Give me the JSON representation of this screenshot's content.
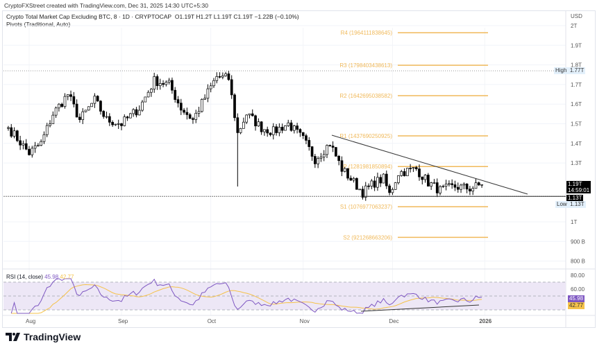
{
  "header": {
    "credit": "CryptoFXStreet created with TradingView.com, Dec 31, 2025 14:30 UTC+5:30",
    "symbol": "Crypto Total Market Cap Excluding BTC, 8 · 1D · CRYPTOCAP",
    "ohlc": "O1.19T  H1.2T  L1.19T  C1.19T  −1.22B (−0.10%)",
    "indicator": "Pivots (Traditional, Auto)"
  },
  "footer": {
    "brand": "TradingView"
  },
  "colors": {
    "up": "#ffffff",
    "down": "#000000",
    "pivot": "#f0b95a",
    "rsi": "#7e57c2",
    "rsi_ma": "#f5c24a",
    "rsi_band": "#ede7f6"
  },
  "chart_data": {
    "type": "candlestick",
    "currency": "USD",
    "y_ticks": [
      "2T",
      "1.9T",
      "1.8T",
      "1.7T",
      "1.6T",
      "1.5T",
      "1.4T",
      "1.3T",
      "1T",
      "900 B",
      "800 B"
    ],
    "x_ticks": [
      "Aug",
      "Sep",
      "Oct",
      "Nov",
      "Dec",
      "2026"
    ],
    "ylim": [
      0.78,
      2.02
    ],
    "approx_closes": [
      [
        "2025-07-25",
        1.48
      ],
      [
        "2025-08-01",
        1.35
      ],
      [
        "2025-08-05",
        1.4
      ],
      [
        "2025-08-09",
        1.55
      ],
      [
        "2025-08-14",
        1.65
      ],
      [
        "2025-08-18",
        1.52
      ],
      [
        "2025-08-23",
        1.62
      ],
      [
        "2025-08-27",
        1.52
      ],
      [
        "2025-09-01",
        1.5
      ],
      [
        "2025-09-07",
        1.58
      ],
      [
        "2025-09-12",
        1.72
      ],
      [
        "2025-09-17",
        1.7
      ],
      [
        "2025-09-21",
        1.58
      ],
      [
        "2025-09-25",
        1.52
      ],
      [
        "2025-09-30",
        1.66
      ],
      [
        "2025-10-03",
        1.74
      ],
      [
        "2025-10-07",
        1.73
      ],
      [
        "2025-10-10",
        1.45
      ],
      [
        "2025-10-13",
        1.55
      ],
      [
        "2025-10-18",
        1.48
      ],
      [
        "2025-10-22",
        1.46
      ],
      [
        "2025-10-27",
        1.5
      ],
      [
        "2025-11-01",
        1.42
      ],
      [
        "2025-11-05",
        1.32
      ],
      [
        "2025-11-10",
        1.4
      ],
      [
        "2025-11-14",
        1.27
      ],
      [
        "2025-11-21",
        1.15
      ],
      [
        "2025-11-25",
        1.2
      ],
      [
        "2025-11-28",
        1.22
      ],
      [
        "2025-11-30",
        1.14
      ],
      [
        "2025-12-03",
        1.25
      ],
      [
        "2025-12-09",
        1.27
      ],
      [
        "2025-12-13",
        1.2
      ],
      [
        "2025-12-17",
        1.16
      ],
      [
        "2025-12-22",
        1.18
      ],
      [
        "2025-12-27",
        1.17
      ],
      [
        "2025-12-31",
        1.19
      ]
    ],
    "flash_crash_low": {
      "date": "2025-10-10",
      "value": 1.18
    },
    "pivots": [
      {
        "label": "R4 (1964111838645)",
        "value": 1.964
      },
      {
        "label": "R3 (1798403438613)",
        "value": 1.798
      },
      {
        "label": "R2 (1642695038582)",
        "value": 1.643
      },
      {
        "label": "R1 (1437690250925)",
        "value": 1.438
      },
      {
        "label": "P (1281981850894)",
        "value": 1.282
      },
      {
        "label": "S1 (1076977063237)",
        "value": 1.077
      },
      {
        "label": "S2 (921268663206)",
        "value": 0.921
      }
    ],
    "high": {
      "label": "High",
      "value": "1.77T"
    },
    "low": {
      "label": "Low",
      "value": "1.13T"
    },
    "last_price": "1.19T",
    "countdown": "14:59:01",
    "support_price": "1.13T",
    "rsi": {
      "label": "RSI (14, close)",
      "value": "45.98",
      "ma": "42.77",
      "ticks": [
        "80.00",
        "60.00"
      ],
      "bands": [
        70,
        50,
        30
      ]
    }
  }
}
